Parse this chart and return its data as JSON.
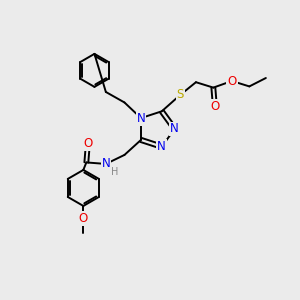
{
  "bg_color": "#ebebeb",
  "atom_colors": {
    "N": "#0000ee",
    "O": "#ee0000",
    "S": "#bbaa00",
    "C": "#000000",
    "H": "#888888"
  },
  "bond_color": "#000000",
  "bond_width": 1.4,
  "font_size_atoms": 8.5,
  "font_size_H": 7.0,
  "figsize": [
    3.0,
    3.0
  ],
  "dpi": 100
}
